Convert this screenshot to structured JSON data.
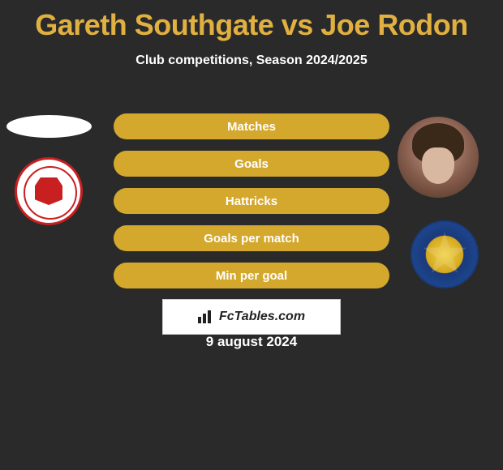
{
  "title": "Gareth Southgate vs Joe Rodon",
  "subtitle": "Club competitions, Season 2024/2025",
  "players": {
    "left": {
      "name": "Gareth Southgate",
      "club": "Middlesbrough",
      "club_primary_color": "#c82020",
      "club_bg_color": "#ffffff"
    },
    "right": {
      "name": "Joe Rodon",
      "club": "Leeds United",
      "club_primary_color": "#f0d040",
      "club_secondary_color": "#1a3a7a"
    }
  },
  "stats": [
    {
      "label": "Matches"
    },
    {
      "label": "Goals"
    },
    {
      "label": "Hattricks"
    },
    {
      "label": "Goals per match"
    },
    {
      "label": "Min per goal"
    }
  ],
  "watermark": "FcTables.com",
  "date": "9 august 2024",
  "styling": {
    "background_color": "#2a2a2a",
    "title_color": "#e0b040",
    "title_fontsize": 36,
    "subtitle_color": "#ffffff",
    "subtitle_fontsize": 16,
    "stat_bar_color": "#d4a82c",
    "stat_bar_text_color": "#ffffff",
    "stat_bar_height": 32,
    "stat_bar_width": 340,
    "stat_bar_radius": 16,
    "stat_bar_spacing": 14,
    "date_color": "#ffffff",
    "watermark_bg": "#ffffff",
    "watermark_border": "#cccccc"
  }
}
